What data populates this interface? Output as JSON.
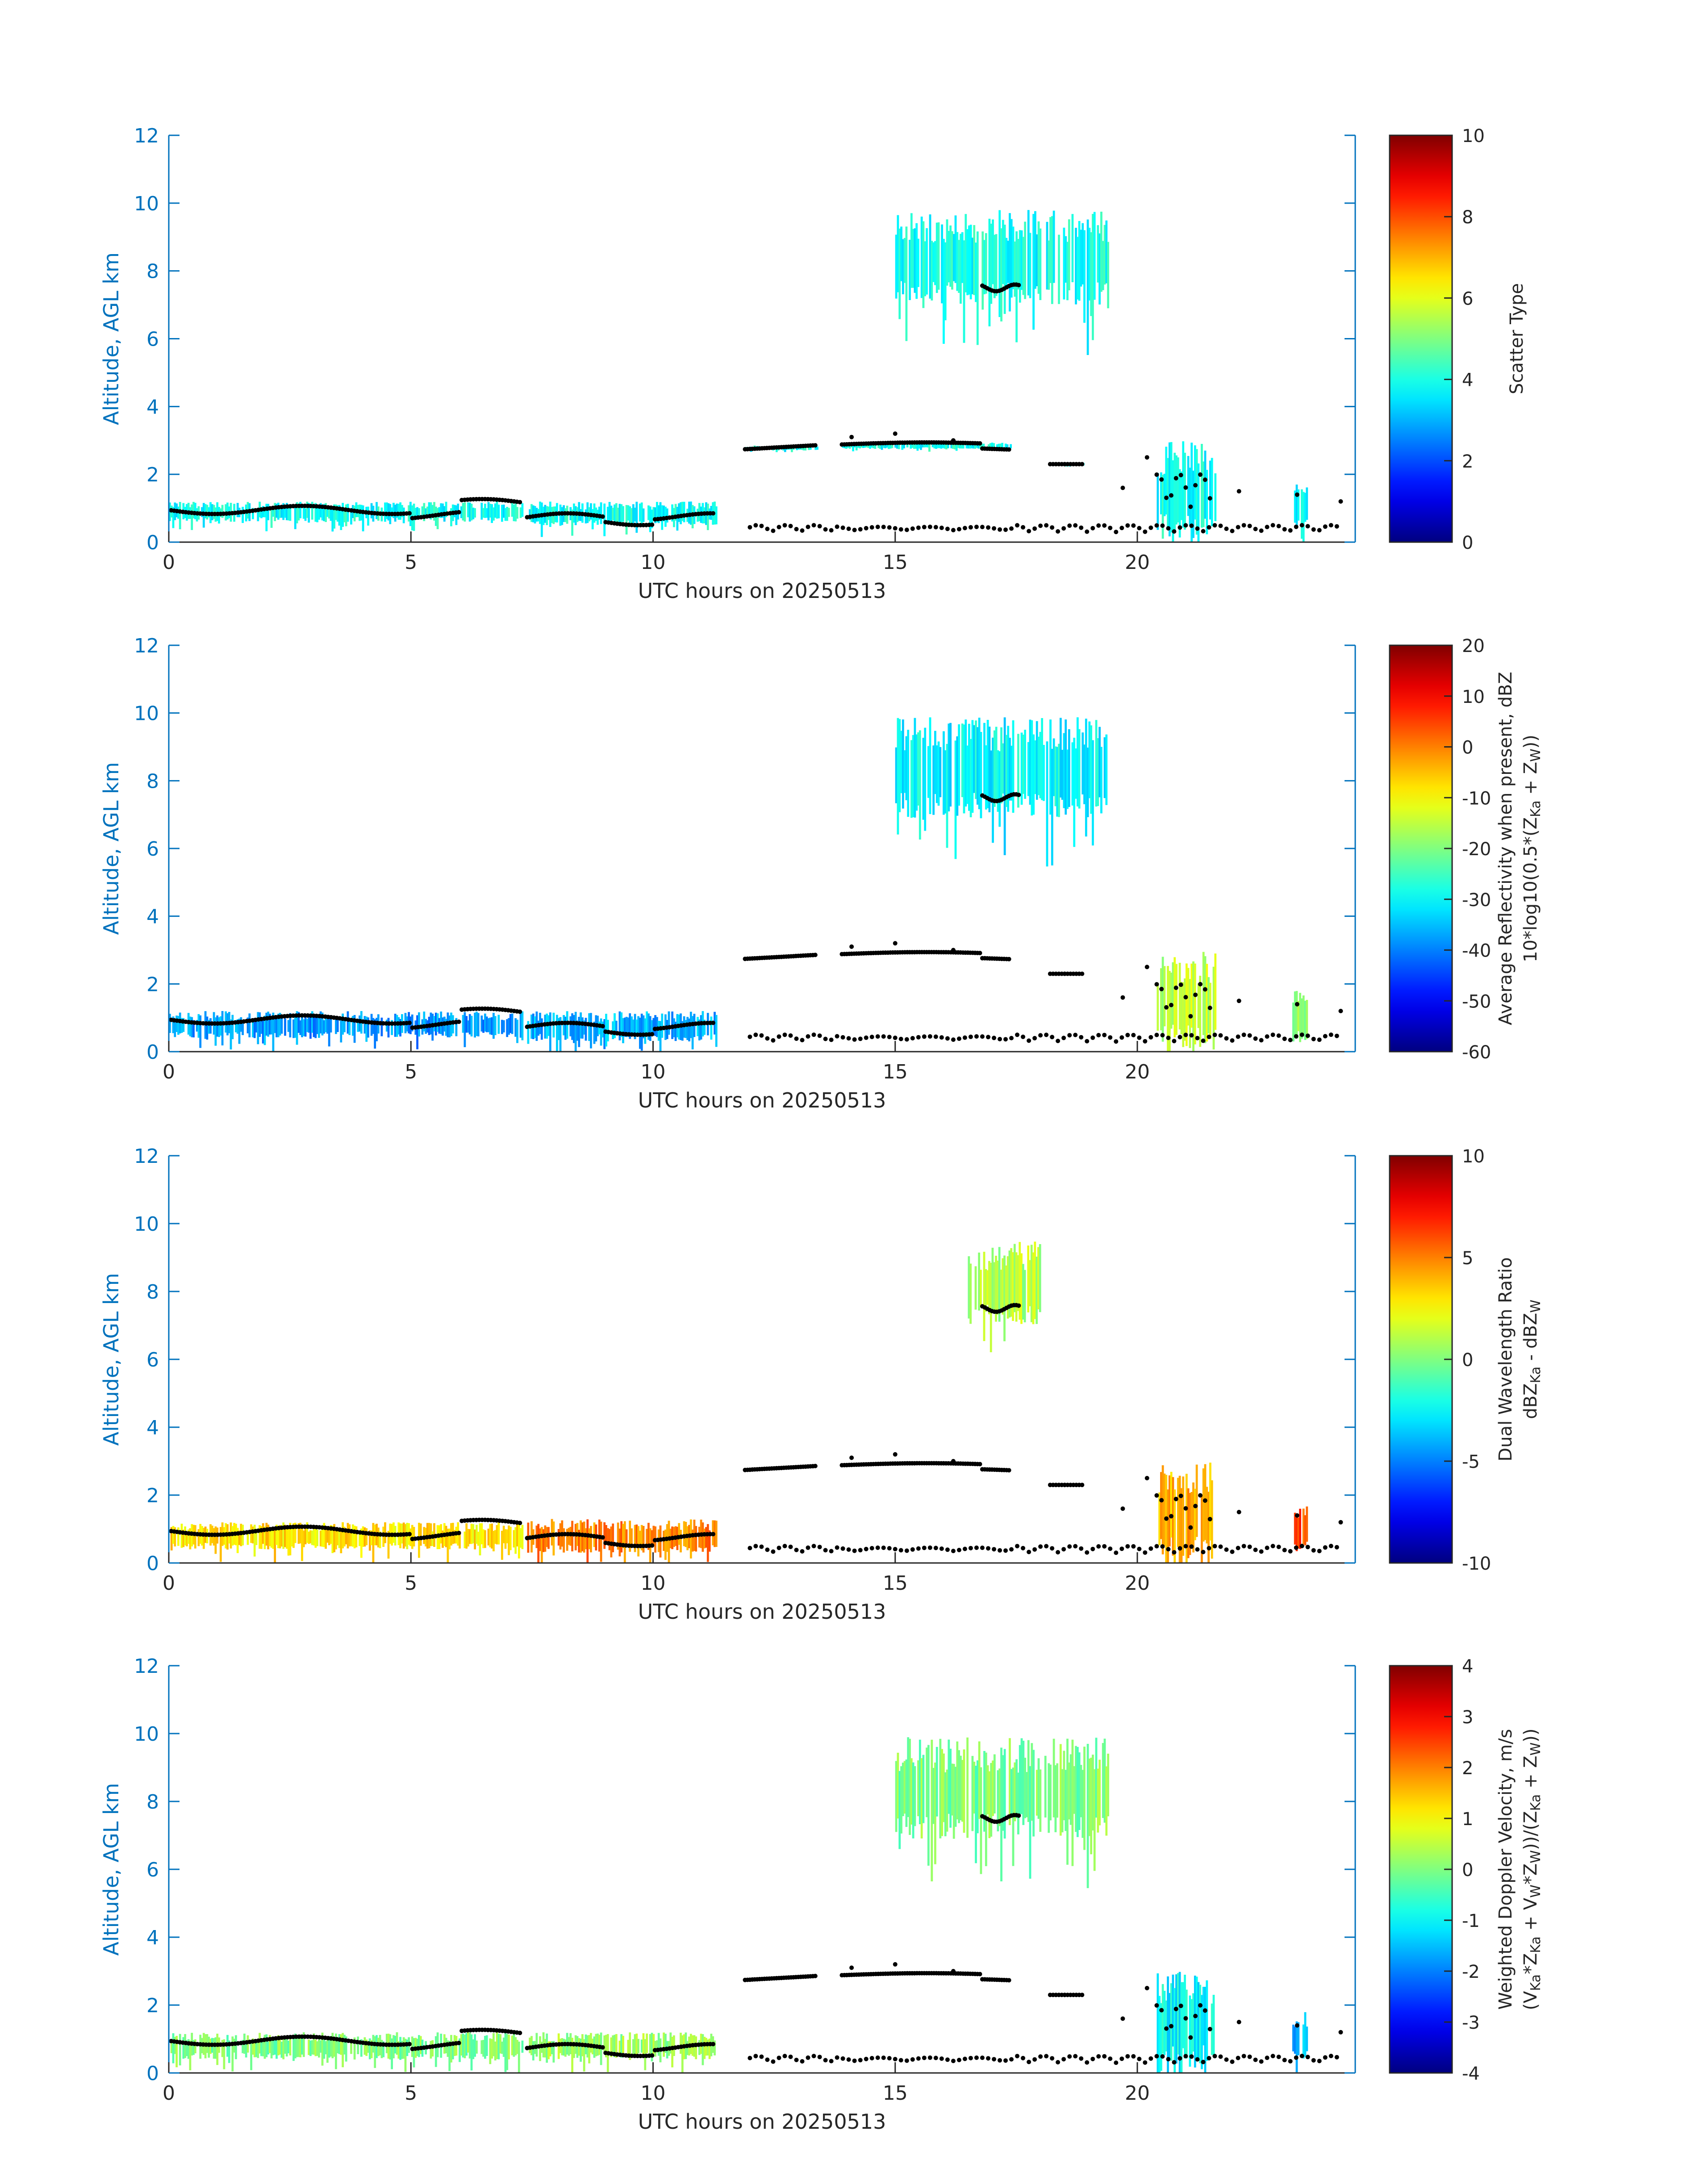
{
  "figure": {
    "xlabel": "UTC hours on 20250513",
    "ylabel": "Altitude, AGL km",
    "axis_color": "#0072BD",
    "label_color": "#262626"
  },
  "chart_data": [
    {
      "type": "heatmap",
      "title": "",
      "xlabel": "UTC hours on 20250513",
      "ylabel": "Altitude, AGL km",
      "xlim": [
        0,
        24.5
      ],
      "ylim": [
        0,
        12
      ],
      "xticks": [
        0,
        5,
        10,
        15,
        20
      ],
      "yticks": [
        0,
        2,
        4,
        6,
        8,
        10,
        12
      ],
      "colorbar": {
        "label_lines": [
          "Scatter Type"
        ],
        "clim": [
          0,
          10
        ],
        "ticks": [
          0,
          2,
          4,
          6,
          8,
          10
        ],
        "colormap": "jet"
      },
      "grid": false,
      "cloud_value": 3.9,
      "cloud_layers": [
        {
          "x": [
            0,
            7.3
          ],
          "base": 0.6,
          "top": 1.2,
          "value": 3.9
        },
        {
          "x": [
            7.4,
            11.3
          ],
          "base": 0.5,
          "top": 1.2,
          "value": 3.9
        },
        {
          "x": [
            11.9,
            13.4
          ],
          "base": 2.7,
          "top": 2.85,
          "value": 3.9
        },
        {
          "x": [
            13.9,
            17.4
          ],
          "base": 2.75,
          "top": 2.95,
          "value": 3.9
        },
        {
          "x": [
            15.0,
            19.4
          ],
          "base": 7.0,
          "top": 9.8,
          "value": 3.9
        },
        {
          "x": [
            18.2,
            18.9
          ],
          "base": 2.25,
          "top": 2.35,
          "value": 3.9
        },
        {
          "x": [
            20.4,
            21.6
          ],
          "base": 0.1,
          "top": 3.0,
          "value": 3.9
        },
        {
          "x": [
            23.2,
            23.5
          ],
          "base": 0.3,
          "top": 1.8,
          "value": 3.9
        }
      ]
    },
    {
      "type": "heatmap",
      "title": "",
      "xlabel": "UTC hours on 20250513",
      "ylabel": "Altitude, AGL km",
      "xlim": [
        0,
        24.5
      ],
      "ylim": [
        0,
        12
      ],
      "xticks": [
        0,
        5,
        10,
        15,
        20
      ],
      "yticks": [
        0,
        2,
        4,
        6,
        8,
        10,
        12
      ],
      "colorbar": {
        "label_lines": [
          "Average Reflectivity when present, dBZ",
          "10*log10(0.5*(Z",
          "Ka",
          " + Z",
          "W",
          "))"
        ],
        "clim": [
          -60,
          20
        ],
        "ticks": [
          -60,
          -50,
          -40,
          -30,
          -20,
          -10,
          0,
          10,
          20
        ],
        "colormap": "jet"
      },
      "grid": false,
      "cloud_value": -35,
      "cloud_layers": [
        {
          "x": [
            0,
            7.3
          ],
          "base": 0.4,
          "top": 1.2,
          "value": -38
        },
        {
          "x": [
            7.4,
            11.3
          ],
          "base": 0.3,
          "top": 1.2,
          "value": -36
        },
        {
          "x": [
            15.0,
            19.4
          ],
          "base": 6.9,
          "top": 9.9,
          "value": -30
        },
        {
          "x": [
            20.4,
            21.6
          ],
          "base": 0.1,
          "top": 3.0,
          "value": -15
        },
        {
          "x": [
            23.2,
            23.5
          ],
          "base": 0.3,
          "top": 1.8,
          "value": -20
        }
      ]
    },
    {
      "type": "heatmap",
      "title": "",
      "xlabel": "UTC hours on 20250513",
      "ylabel": "Altitude, AGL km",
      "xlim": [
        0,
        24.5
      ],
      "ylim": [
        0,
        12
      ],
      "xticks": [
        0,
        5,
        10,
        15,
        20
      ],
      "yticks": [
        0,
        2,
        4,
        6,
        8,
        10,
        12
      ],
      "colorbar": {
        "label_lines": [
          "Dual Wavelength Ratio",
          "dBZ",
          "Ka",
          " - dBZ",
          "W"
        ],
        "clim": [
          -10,
          10
        ],
        "ticks": [
          -10,
          -5,
          0,
          5,
          10
        ],
        "colormap": "jet"
      },
      "grid": false,
      "cloud_value": 3,
      "cloud_layers": [
        {
          "x": [
            0,
            7.3
          ],
          "base": 0.4,
          "top": 1.2,
          "value": 3
        },
        {
          "x": [
            7.4,
            11.3
          ],
          "base": 0.3,
          "top": 1.3,
          "value": 5
        },
        {
          "x": [
            16.5,
            18.0
          ],
          "base": 7.0,
          "top": 9.5,
          "value": 1
        },
        {
          "x": [
            20.4,
            21.6
          ],
          "base": 0.1,
          "top": 3.0,
          "value": 4
        },
        {
          "x": [
            23.2,
            23.5
          ],
          "base": 0.3,
          "top": 1.8,
          "value": 6
        }
      ]
    },
    {
      "type": "heatmap",
      "title": "",
      "xlabel": "UTC hours on 20250513",
      "ylabel": "Altitude, AGL km",
      "xlim": [
        0,
        24.5
      ],
      "ylim": [
        0,
        12
      ],
      "xticks": [
        0,
        5,
        10,
        15,
        20
      ],
      "yticks": [
        0,
        2,
        4,
        6,
        8,
        10,
        12
      ],
      "colorbar": {
        "label_lines": [
          "Weighted Doppler Velocity, m/s",
          "(V",
          "Ka",
          "*Z",
          "Ka",
          " + V",
          "W",
          "*Z",
          "W",
          "))/(Z",
          "Ka",
          " + Z",
          "W",
          "))"
        ],
        "clim": [
          -4,
          4
        ],
        "ticks": [
          -4,
          -3,
          -2,
          -1,
          0,
          1,
          2,
          3,
          4
        ],
        "colormap": "jet"
      },
      "grid": false,
      "cloud_value": 0,
      "cloud_layers": [
        {
          "x": [
            0,
            7.3
          ],
          "base": 0.4,
          "top": 1.2,
          "value": 0
        },
        {
          "x": [
            7.4,
            11.3
          ],
          "base": 0.4,
          "top": 1.2,
          "value": 0.2
        },
        {
          "x": [
            15.0,
            19.4
          ],
          "base": 6.9,
          "top": 9.9,
          "value": 0
        },
        {
          "x": [
            20.4,
            21.6
          ],
          "base": 0.1,
          "top": 3.0,
          "value": -1
        },
        {
          "x": [
            23.2,
            23.5
          ],
          "base": 0.3,
          "top": 1.8,
          "value": -1.5
        }
      ]
    }
  ]
}
